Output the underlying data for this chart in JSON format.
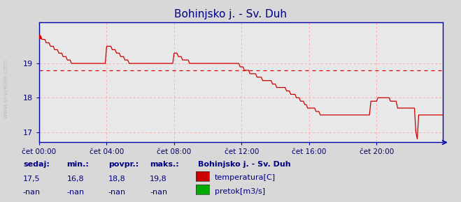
{
  "title": "Bohinjsko j. - Sv. Duh",
  "title_color": "#000080",
  "title_fontsize": 11,
  "bg_color": "#d8d8d8",
  "plot_bg_color": "#e8e8e8",
  "grid_color": "#ffaaaa",
  "axis_color": "#0000aa",
  "line_color": "#cc0000",
  "avg_line_color": "#dd0000",
  "avg_value": 18.8,
  "ylim": [
    16.7,
    20.2
  ],
  "yticks": [
    17,
    18,
    19
  ],
  "xlim": [
    0,
    287
  ],
  "xtick_positions": [
    0,
    48,
    96,
    144,
    192,
    240
  ],
  "xtick_labels": [
    "čet 00:00",
    "čet 04:00",
    "čet 08:00",
    "čet 12:00",
    "čet 16:00",
    "čet 20:00"
  ],
  "watermark": "www.si-vreme.com",
  "footer_labels": [
    "sedaj:",
    "min.:",
    "povpr.:",
    "maks.:"
  ],
  "footer_values_row1": [
    "17,5",
    "16,8",
    "18,8",
    "19,8"
  ],
  "footer_values_row2": [
    "-nan",
    "-nan",
    "-nan",
    "-nan"
  ],
  "legend_title": "Bohinjsko j. - Sv. Duh",
  "legend_items": [
    {
      "label": "temperatura[C]",
      "color": "#cc0000"
    },
    {
      "label": "pretok[m3/s]",
      "color": "#00aa00"
    }
  ],
  "temp_data": [
    19.8,
    19.8,
    19.7,
    19.7,
    19.7,
    19.6,
    19.6,
    19.6,
    19.5,
    19.5,
    19.5,
    19.4,
    19.4,
    19.4,
    19.3,
    19.3,
    19.3,
    19.2,
    19.2,
    19.2,
    19.1,
    19.1,
    19.1,
    19.0,
    19.0,
    19.0,
    19.0,
    19.0,
    19.0,
    19.0,
    19.0,
    19.0,
    19.0,
    19.0,
    19.0,
    19.0,
    19.0,
    19.0,
    19.0,
    19.0,
    19.0,
    19.0,
    19.0,
    19.0,
    19.0,
    19.0,
    19.0,
    19.0,
    19.5,
    19.5,
    19.5,
    19.5,
    19.4,
    19.4,
    19.4,
    19.3,
    19.3,
    19.3,
    19.2,
    19.2,
    19.2,
    19.1,
    19.1,
    19.1,
    19.0,
    19.0,
    19.0,
    19.0,
    19.0,
    19.0,
    19.0,
    19.0,
    19.0,
    19.0,
    19.0,
    19.0,
    19.0,
    19.0,
    19.0,
    19.0,
    19.0,
    19.0,
    19.0,
    19.0,
    19.0,
    19.0,
    19.0,
    19.0,
    19.0,
    19.0,
    19.0,
    19.0,
    19.0,
    19.0,
    19.0,
    19.0,
    19.3,
    19.3,
    19.3,
    19.2,
    19.2,
    19.2,
    19.1,
    19.1,
    19.1,
    19.1,
    19.1,
    19.0,
    19.0,
    19.0,
    19.0,
    19.0,
    19.0,
    19.0,
    19.0,
    19.0,
    19.0,
    19.0,
    19.0,
    19.0,
    19.0,
    19.0,
    19.0,
    19.0,
    19.0,
    19.0,
    19.0,
    19.0,
    19.0,
    19.0,
    19.0,
    19.0,
    19.0,
    19.0,
    19.0,
    19.0,
    19.0,
    19.0,
    19.0,
    19.0,
    19.0,
    19.0,
    19.0,
    18.9,
    18.9,
    18.9,
    18.8,
    18.8,
    18.8,
    18.8,
    18.7,
    18.7,
    18.7,
    18.7,
    18.7,
    18.6,
    18.6,
    18.6,
    18.6,
    18.5,
    18.5,
    18.5,
    18.5,
    18.5,
    18.5,
    18.5,
    18.4,
    18.4,
    18.4,
    18.3,
    18.3,
    18.3,
    18.3,
    18.3,
    18.3,
    18.3,
    18.2,
    18.2,
    18.2,
    18.1,
    18.1,
    18.1,
    18.1,
    18.0,
    18.0,
    18.0,
    17.9,
    17.9,
    17.9,
    17.8,
    17.8,
    17.7,
    17.7,
    17.7,
    17.7,
    17.7,
    17.7,
    17.6,
    17.6,
    17.6,
    17.5,
    17.5,
    17.5,
    17.5,
    17.5,
    17.5,
    17.5,
    17.5,
    17.5,
    17.5,
    17.5,
    17.5,
    17.5,
    17.5,
    17.5,
    17.5,
    17.5,
    17.5,
    17.5,
    17.5,
    17.5,
    17.5,
    17.5,
    17.5,
    17.5,
    17.5,
    17.5,
    17.5,
    17.5,
    17.5,
    17.5,
    17.5,
    17.5,
    17.5,
    17.5,
    17.5,
    17.9,
    17.9,
    17.9,
    17.9,
    17.9,
    18.0,
    18.0,
    18.0,
    18.0,
    18.0,
    18.0,
    18.0,
    18.0,
    18.0,
    17.9,
    17.9,
    17.9,
    17.9,
    17.9,
    17.7,
    17.7,
    17.7,
    17.7,
    17.7,
    17.7,
    17.7,
    17.7,
    17.7,
    17.7,
    17.7,
    17.7,
    17.7,
    17.0,
    16.8,
    17.5,
    17.5,
    17.5,
    17.5,
    17.5,
    17.5,
    17.5,
    17.5,
    17.5,
    17.5,
    17.5,
    17.5,
    17.5,
    17.5,
    17.5,
    17.5,
    17.5,
    17.5
  ]
}
